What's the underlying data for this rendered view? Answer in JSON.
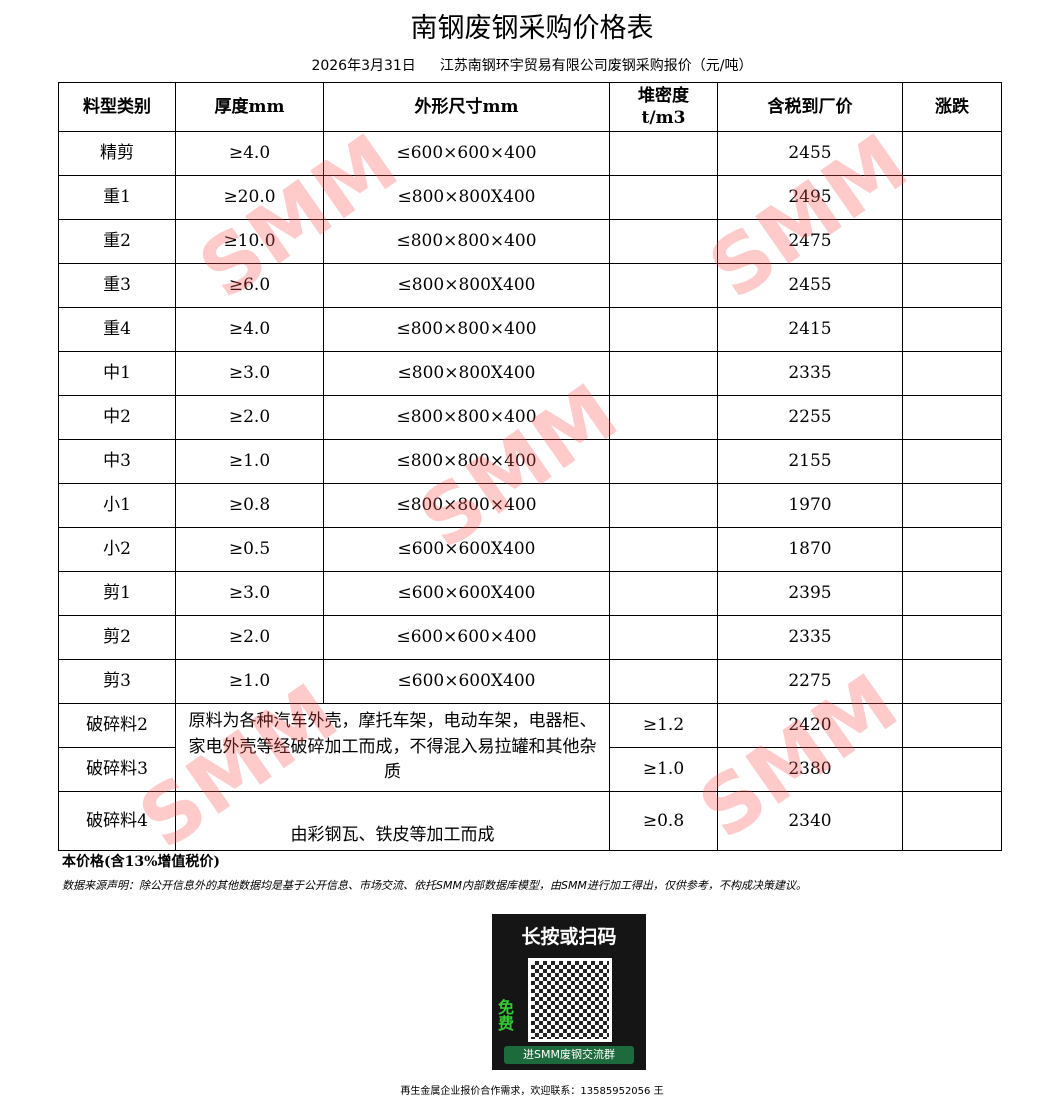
{
  "title": "南钢废钢采购价格表",
  "subtitle": {
    "date": "2026年3月31日",
    "company": "江苏南钢环宇贸易有限公司废钢采购报价（元/吨）"
  },
  "headers": [
    "料型类别",
    "厚度mm",
    "外形尺寸mm",
    "堆密度\nt/m3",
    "含税到厂价",
    "涨跌"
  ],
  "rows": [
    {
      "type": "精剪",
      "thick": "≥4.0",
      "size": "≤600×600×400",
      "price": "2455"
    },
    {
      "type": "重1",
      "thick": "≥20.0",
      "size": "≤800×800X400",
      "price": "2495"
    },
    {
      "type": "重2",
      "thick": "≥10.0",
      "size": "≤800×800×400",
      "price": "2475"
    },
    {
      "type": "重3",
      "thick": "≥6.0",
      "size": "≤800×800X400",
      "price": "2455"
    },
    {
      "type": "重4",
      "thick": "≥4.0",
      "size": "≤800×800×400",
      "price": "2415"
    },
    {
      "type": "中1",
      "thick": "≥3.0",
      "size": "≤800×800X400",
      "price": "2335"
    },
    {
      "type": "中2",
      "thick": "≥2.0",
      "size": "≤800×800×400",
      "price": "2255"
    },
    {
      "type": "中3",
      "thick": "≥1.0",
      "size": "≤800×800×400",
      "price": "2155"
    },
    {
      "type": "小1",
      "thick": "≥0.8",
      "size": "≤800×800×400",
      "price": "1970"
    },
    {
      "type": "小2",
      "thick": "≥0.5",
      "size": "≤600×600X400",
      "price": "1870"
    },
    {
      "type": "剪1",
      "thick": "≥3.0",
      "size": "≤600×600X400",
      "price": "2395"
    },
    {
      "type": "剪2",
      "thick": "≥2.0",
      "size": "≤600×600×400",
      "price": "2335"
    },
    {
      "type": "剪3",
      "thick": "≥1.0",
      "size": "≤600×600X400",
      "price": "2275"
    }
  ],
  "shred": {
    "desc23": "原料为各种汽车外壳，摩托车架，电动车架，电器柜、家电外壳等经破碎加工而成，不得混入易拉罐和其他杂质",
    "desc4": "由彩钢瓦、铁皮等加工而成",
    "rows": [
      {
        "type": "破碎料2",
        "density": "≥1.2",
        "price": "2420"
      },
      {
        "type": "破碎料3",
        "density": "≥1.0",
        "price": "2380"
      },
      {
        "type": "破碎料4",
        "density": "≥0.8",
        "price": "2340"
      }
    ]
  },
  "watermark": "SMM",
  "note_tax": "本价格(含13%增值税价)",
  "disclaimer": "数据来源声明：除公开信息外的其他数据均是基于公开信息、市场交流、依托SMM内部数据库模型，由SMM进行加工得出，仅供参考，不构成决策建议。",
  "qr": {
    "heading": "长按或扫码",
    "free": "免费",
    "button": "进SMM废钢交流群"
  },
  "contact": "再生金属企业报价合作需求，欢迎联系：13585952056 王"
}
